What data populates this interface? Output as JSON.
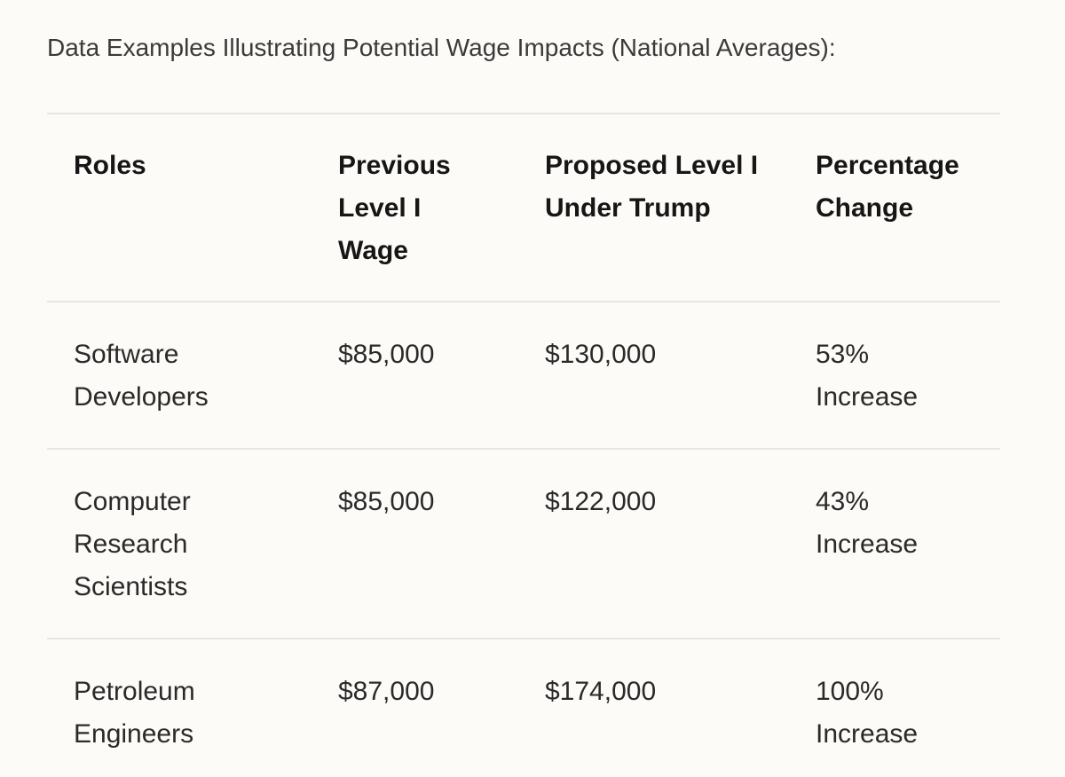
{
  "intro_text": "Data Examples Illustrating Potential Wage Impacts (National Averages):",
  "table": {
    "headers": {
      "roles": "Roles",
      "previous": "Previous Level I Wage",
      "proposed": "Proposed Level I Under Trump",
      "change": "Percentage Change"
    },
    "rows": [
      {
        "role": "Software Developers",
        "previous": "$85,000",
        "proposed": "$130,000",
        "change": "53% Increase"
      },
      {
        "role": "Computer Research Scientists",
        "previous": "$85,000",
        "proposed": "$122,000",
        "change": "43% Increase"
      },
      {
        "role": "Petroleum Engineers",
        "previous": "$87,000",
        "proposed": "$174,000",
        "change": "100% Increase"
      }
    ]
  },
  "colors": {
    "background": "#fcfbf8",
    "divider": "#e9e6e0",
    "text": "#1f1f1f"
  }
}
